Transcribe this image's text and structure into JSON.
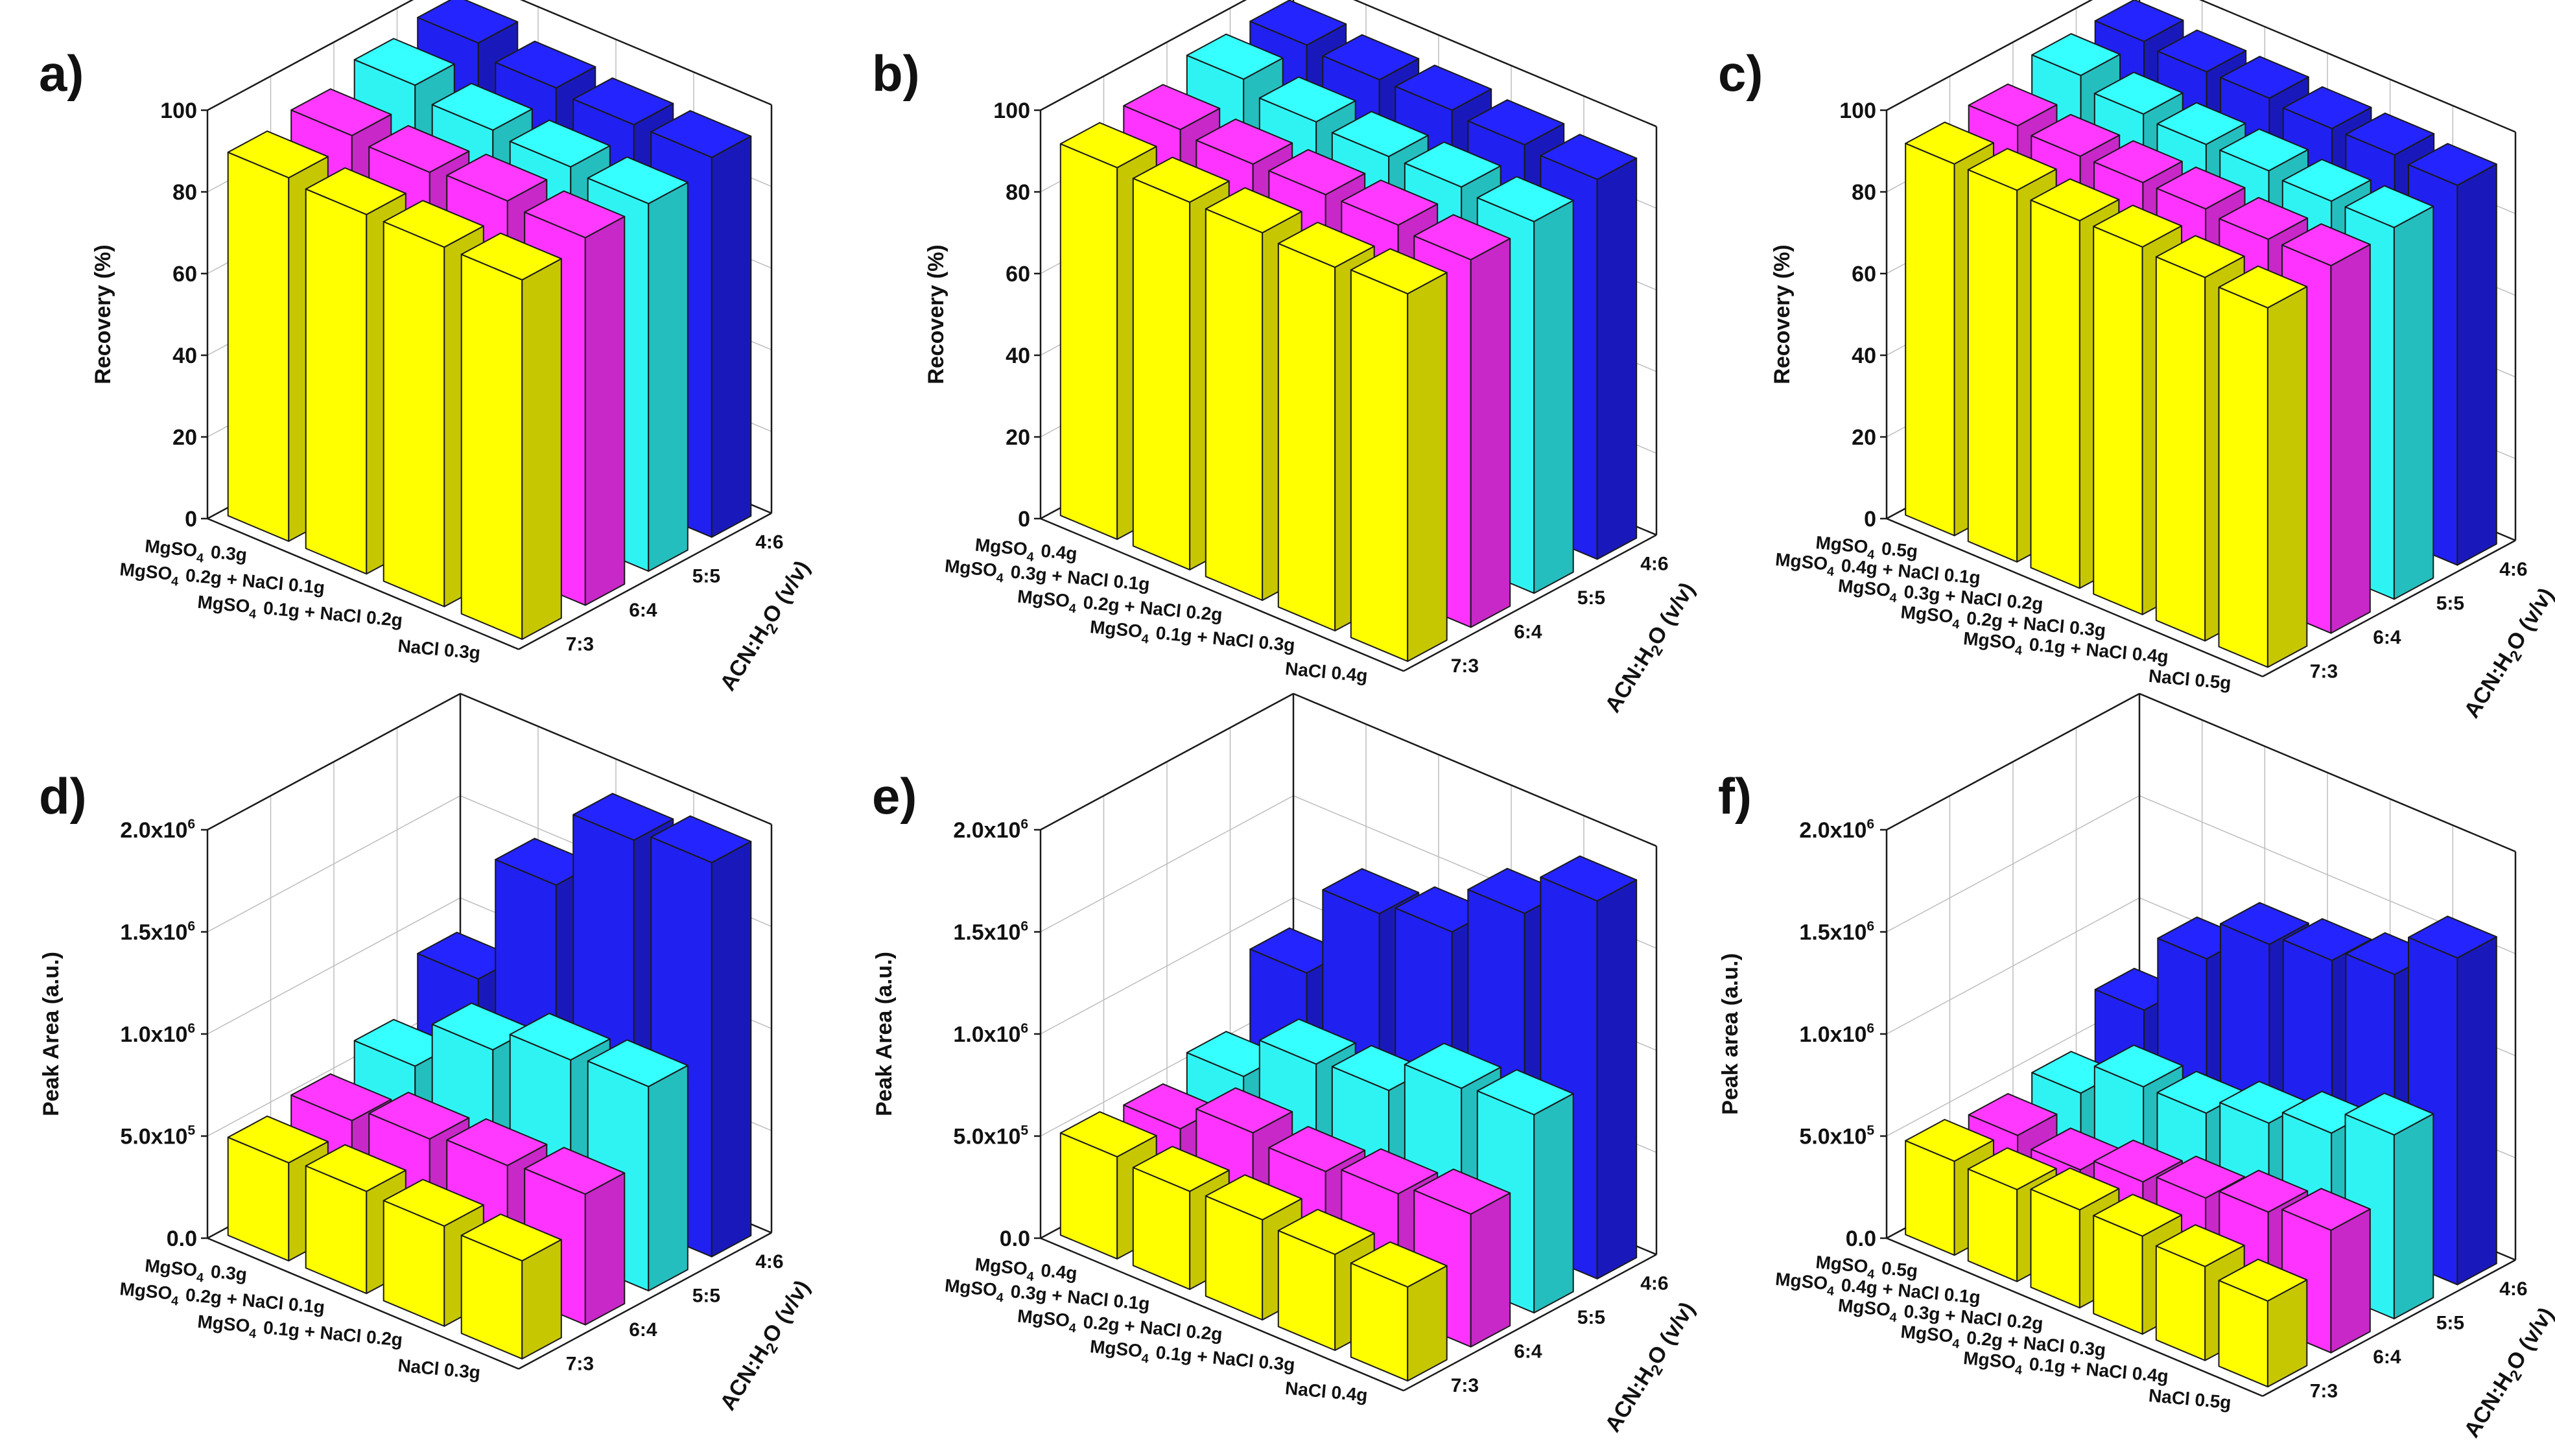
{
  "colors": {
    "yellow": "#ffff00",
    "magenta": "#ff33ff",
    "cyan": "#2ff3f3",
    "blue": "#2020f0"
  },
  "chart_data": [
    {
      "type": "bar",
      "panel": "a)",
      "ylabel": "Recovery (%)",
      "depth_label": "ACN:H2O (v/v)",
      "ylim": [
        0,
        100
      ],
      "yticks": [
        "0",
        "20",
        "40",
        "60",
        "80",
        "100"
      ],
      "categories": [
        "MgSO4 0.3g",
        "MgSO4 0.2g + NaCl 0.1g",
        "MgSO4 0.1g + NaCl 0.2g",
        "NaCl 0.3g"
      ],
      "series": [
        {
          "name": "7:3",
          "color": "yellow",
          "values": [
            89,
            88,
            88,
            88
          ]
        },
        {
          "name": "6:4",
          "color": "magenta",
          "values": [
            91,
            90,
            91,
            90
          ]
        },
        {
          "name": "5:5",
          "color": "cyan",
          "values": [
            95,
            92,
            91,
            90
          ]
        },
        {
          "name": "4:6",
          "color": "blue",
          "values": [
            97,
            94,
            93,
            93
          ]
        }
      ]
    },
    {
      "type": "bar",
      "panel": "b)",
      "ylabel": "Recovery (%)",
      "depth_label": "ACN:H2O (v/v)",
      "ylim": [
        0,
        100
      ],
      "yticks": [
        "0",
        "20",
        "40",
        "60",
        "80",
        "100"
      ],
      "categories": [
        "MgSO4 0.4g",
        "MgSO4 0.3g + NaCl 0.1g",
        "MgSO4 0.2g + NaCl 0.2g",
        "MgSO4 0.1g + NaCl 0.3g",
        "NaCl 0.4g"
      ],
      "series": [
        {
          "name": "7:3",
          "color": "yellow",
          "values": [
            91,
            90,
            90,
            89,
            90
          ]
        },
        {
          "name": "6:4",
          "color": "magenta",
          "values": [
            92,
            91,
            91,
            91,
            90
          ]
        },
        {
          "name": "5:5",
          "color": "cyan",
          "values": [
            96,
            93,
            92,
            92,
            91
          ]
        },
        {
          "name": "4:6",
          "color": "blue",
          "values": [
            96,
            95,
            95,
            94,
            93
          ]
        }
      ]
    },
    {
      "type": "bar",
      "panel": "c)",
      "ylabel": "Recovery (%)",
      "depth_label": "ACN:H2O (v/v)",
      "ylim": [
        0,
        100
      ],
      "yticks": [
        "0",
        "20",
        "40",
        "60",
        "80",
        "100"
      ],
      "categories": [
        "MgSO4 0.5g",
        "MgSO4 0.4g + NaCl 0.1g",
        "MgSO4 0.3g + NaCl 0.2g",
        "MgSO4 0.2g + NaCl 0.3g",
        "MgSO4 0.1g + NaCl 0.4g",
        "NaCl 0.5g"
      ],
      "series": [
        {
          "name": "7:3",
          "color": "yellow",
          "values": [
            91,
            91,
            90,
            90,
            89,
            88
          ]
        },
        {
          "name": "6:4",
          "color": "magenta",
          "values": [
            92,
            91,
            91,
            91,
            90,
            90
          ]
        },
        {
          "name": "5:5",
          "color": "cyan",
          "values": [
            96,
            93,
            92,
            92,
            91,
            91
          ]
        },
        {
          "name": "4:6",
          "color": "blue",
          "values": [
            96,
            95,
            95,
            94,
            94,
            93
          ]
        }
      ]
    },
    {
      "type": "bar",
      "panel": "d)",
      "ylabel": "Peak Area (a.u.)",
      "depth_label": "ACN:H2O (v/v)",
      "ylim": [
        0,
        2000000
      ],
      "yticks": [
        "0.0",
        "5.0x10^5",
        "1.0x10^6",
        "1.5x10^6",
        "2.0x10^6"
      ],
      "categories": [
        "MgSO4 0.3g",
        "MgSO4 0.2g + NaCl 0.1g",
        "MgSO4 0.1g + NaCl 0.2g",
        "NaCl 0.3g"
      ],
      "series": [
        {
          "name": "7:3",
          "color": "yellow",
          "values": [
            480000,
            500000,
            490000,
            480000
          ]
        },
        {
          "name": "6:4",
          "color": "magenta",
          "values": [
            520000,
            590000,
            620000,
            640000
          ]
        },
        {
          "name": "5:5",
          "color": "cyan",
          "values": [
            620000,
            860000,
            970000,
            1000000
          ]
        },
        {
          "name": "4:6",
          "color": "blue",
          "values": [
            880000,
            1500000,
            1880000,
            1930000
          ]
        }
      ]
    },
    {
      "type": "bar",
      "panel": "e)",
      "ylabel": "Peak Area (a.u.)",
      "depth_label": "ACN:H2O (v/v)",
      "ylim": [
        0,
        2000000
      ],
      "yticks": [
        "0.0",
        "5.0x10^5",
        "1.0x10^6",
        "1.5x10^6",
        "2.0x10^6"
      ],
      "categories": [
        "MgSO4 0.4g",
        "MgSO4 0.3g + NaCl 0.1g",
        "MgSO4 0.2g + NaCl 0.2g",
        "MgSO4 0.1g + NaCl 0.3g",
        "NaCl 0.4g"
      ],
      "series": [
        {
          "name": "7:3",
          "color": "yellow",
          "values": [
            500000,
            480000,
            490000,
            470000,
            460000
          ]
        },
        {
          "name": "6:4",
          "color": "magenta",
          "values": [
            470000,
            600000,
            560000,
            600000,
            650000
          ]
        },
        {
          "name": "5:5",
          "color": "cyan",
          "values": [
            560000,
            770000,
            790000,
            950000,
            970000
          ]
        },
        {
          "name": "4:6",
          "color": "blue",
          "values": [
            900000,
            1340000,
            1400000,
            1640000,
            1850000
          ]
        }
      ]
    },
    {
      "type": "bar",
      "panel": "f)",
      "ylabel": "Peak area (a.u.)",
      "depth_label": "ACN:H2O (v/v)",
      "ylim": [
        0,
        2000000
      ],
      "yticks": [
        "0.0",
        "5.0x10^5",
        "1.0x10^6",
        "1.5x10^6",
        "2.0x10^6"
      ],
      "categories": [
        "MgSO4 0.5g",
        "MgSO4 0.4g + NaCl 0.1g",
        "MgSO4 0.3g + NaCl 0.2g",
        "MgSO4 0.2g + NaCl 0.3g",
        "MgSO4 0.1g + NaCl 0.4g",
        "NaCl 0.5g"
      ],
      "series": [
        {
          "name": "7:3",
          "color": "yellow",
          "values": [
            460000,
            450000,
            480000,
            480000,
            460000,
            420000
          ]
        },
        {
          "name": "6:4",
          "color": "magenta",
          "values": [
            420000,
            380000,
            450000,
            500000,
            560000,
            600000
          ]
        },
        {
          "name": "5:5",
          "color": "cyan",
          "values": [
            460000,
            620000,
            620000,
            700000,
            780000,
            900000
          ]
        },
        {
          "name": "4:6",
          "color": "blue",
          "values": [
            700000,
            1080000,
            1280000,
            1330000,
            1390000,
            1600000
          ]
        }
      ]
    }
  ]
}
